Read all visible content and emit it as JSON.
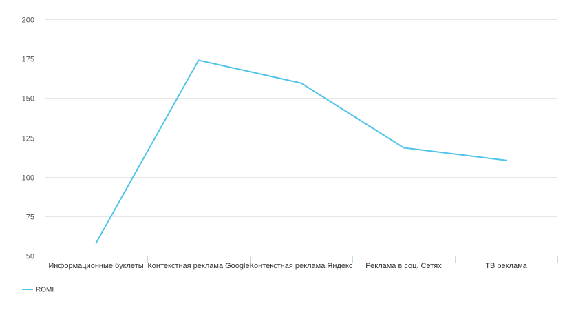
{
  "chart_data": {
    "type": "line",
    "title": "",
    "xlabel": "",
    "ylabel": "",
    "categories": [
      "Информационные буклеты",
      "Контекстная реклама Google",
      "Контекстная реклама Яндекс",
      "Реклама в соц. Сетях",
      "ТВ реклама"
    ],
    "series": [
      {
        "name": "ROMI",
        "values": [
          58,
          174,
          159.5,
          118.5,
          110.5
        ],
        "color": "#4fc3e8"
      }
    ],
    "ylim": [
      50,
      200
    ],
    "yticks": [
      50,
      75,
      100,
      125,
      150,
      175,
      200
    ],
    "grid": true,
    "legend": "bottom-left"
  }
}
